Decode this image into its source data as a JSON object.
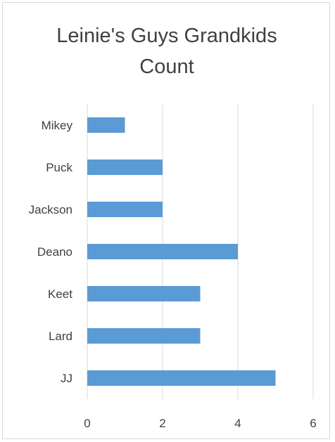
{
  "chart_data": {
    "type": "bar",
    "orientation": "horizontal",
    "title": "Leinie's Guys Grandkids\nCount",
    "categories": [
      "Mikey",
      "Puck",
      "Jackson",
      "Deano",
      "Keet",
      "Lard",
      "JJ"
    ],
    "values": [
      1,
      2,
      2,
      4,
      3,
      3,
      5
    ],
    "xlim": [
      0,
      6
    ],
    "x_ticks": [
      "0",
      "2",
      "4",
      "6"
    ],
    "grid": true,
    "legend": false,
    "bar_color": "#5b9bd5",
    "gridline_color": "#d9d9d9",
    "text_color": "#404040"
  }
}
